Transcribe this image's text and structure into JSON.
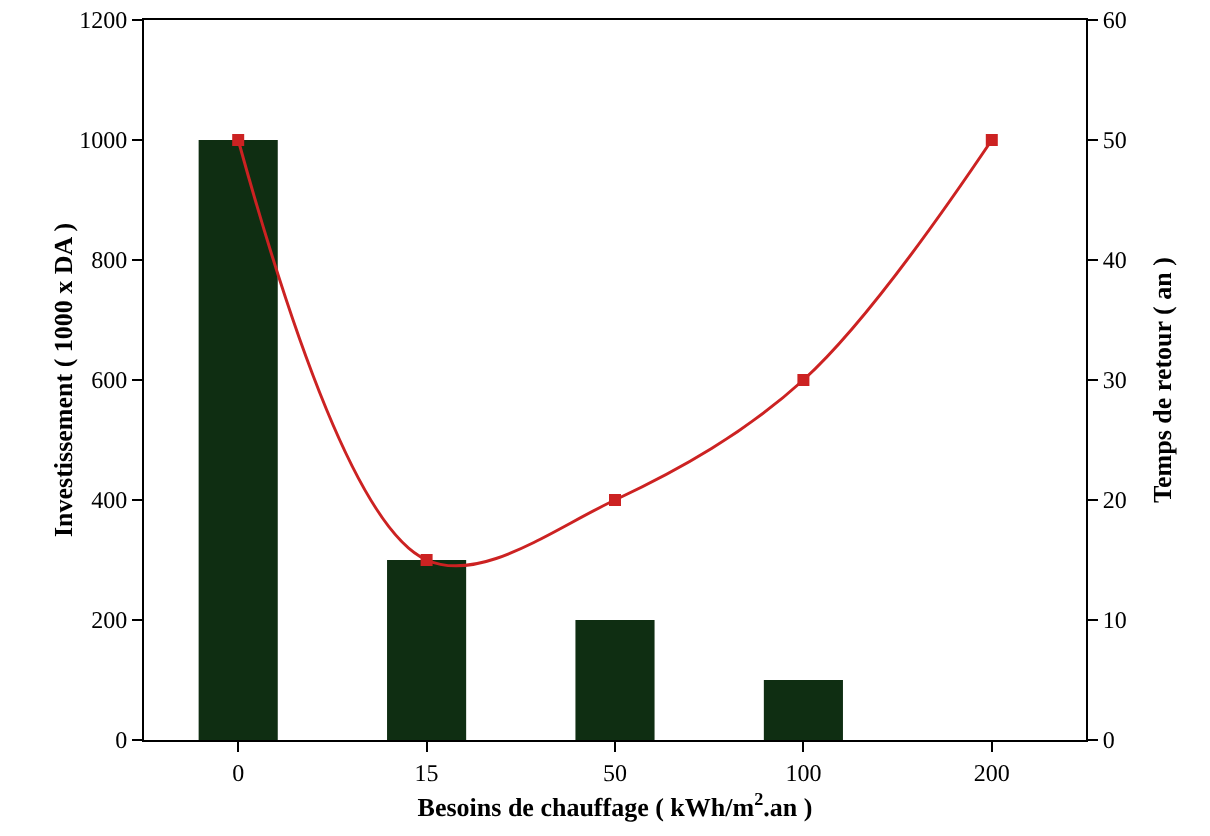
{
  "chart_data": {
    "type": "bar",
    "xlabel": "Besoins de chauffage ( kWh/m$^{2}$.an )",
    "ylabel": "Investissement ( 1000 x DA )",
    "y2label": "Temps de retour ( an )",
    "categories": [
      "0",
      "15",
      "50",
      "100",
      "200"
    ],
    "series": [
      {
        "color": "#0f2e12",
        "values": [
          1000,
          300,
          200,
          100,
          null
        ]
      },
      {
        "type": "line",
        "axis": "y2",
        "color": "#cc2222",
        "marker": "square",
        "line_style": "solid",
        "values": [
          50,
          15,
          20,
          30,
          50
        ]
      }
    ],
    "ylim": [
      0,
      1200
    ],
    "yticks": [
      0,
      200,
      400,
      600,
      800,
      1000,
      1200
    ],
    "y2lim": [
      0,
      60
    ],
    "y2ticks": [
      0,
      10,
      20,
      30,
      40,
      50,
      60
    ],
    "grid": false
  }
}
